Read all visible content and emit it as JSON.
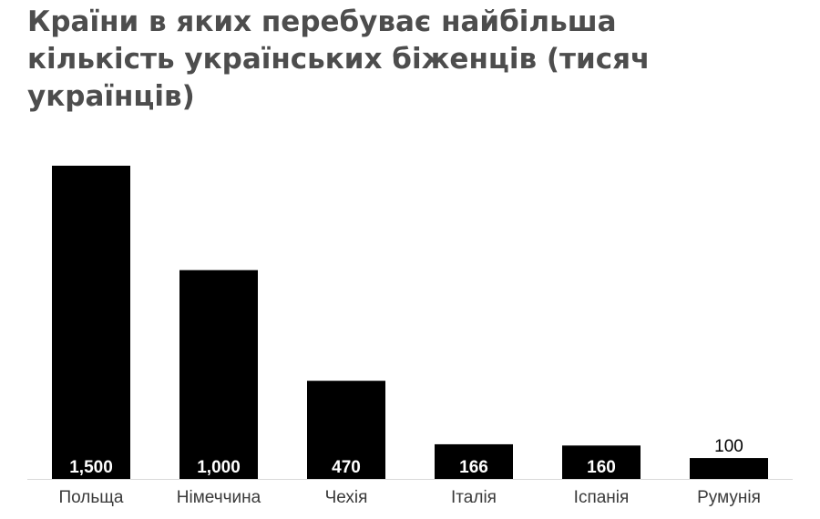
{
  "title": "Країни в яких перебуває найбільша кількість українських біженців (тисяч українців)",
  "chart_data": {
    "type": "bar",
    "title": "Країни в яких перебуває найбільша кількість українських біженців (тисяч українців)",
    "categories": [
      "Польща",
      "Німеччина",
      "Чехія",
      "Італія",
      "Іспанія",
      "Румунія"
    ],
    "values": [
      1500,
      1000,
      470,
      166,
      160,
      100
    ],
    "value_labels": [
      "1,500",
      "1,000",
      "470",
      "166",
      "160",
      "100"
    ],
    "xlabel": "",
    "ylabel": "",
    "ylim": [
      0,
      1500
    ],
    "grid": false,
    "legend": "none",
    "bar_color": "#000000",
    "baseline_color": "#d9d9d9"
  }
}
